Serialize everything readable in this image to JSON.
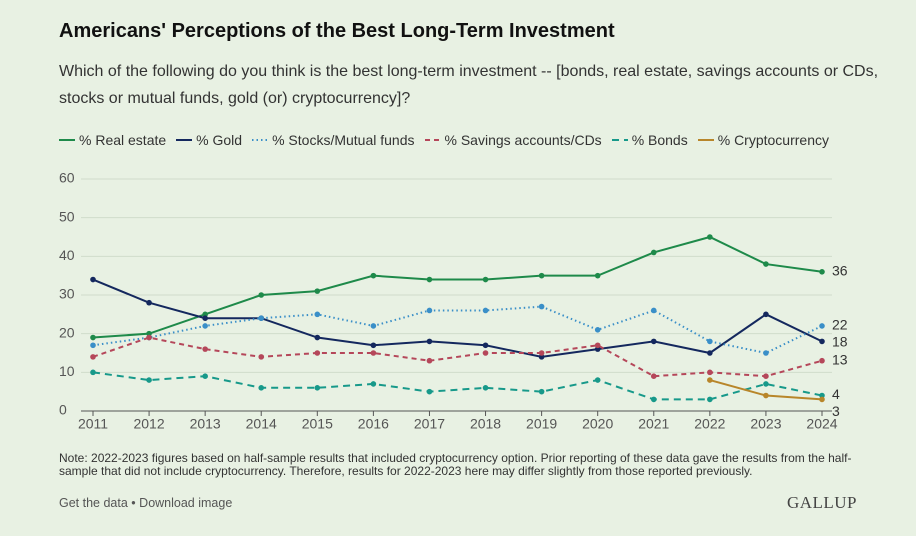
{
  "chart_data": {
    "type": "line",
    "title": "Americans' Perceptions of the Best Long-Term Investment",
    "subtitle": "Which of the following do you think is the best long-term investment -- [bonds, real estate, savings accounts or CDs, stocks or mutual funds, gold (or) cryptocurrency]?",
    "x": [
      2011,
      2012,
      2013,
      2014,
      2015,
      2016,
      2017,
      2018,
      2019,
      2020,
      2021,
      2022,
      2023,
      2024
    ],
    "xlim": [
      2011,
      2024
    ],
    "xticks": [
      2011,
      2012,
      2013,
      2014,
      2015,
      2016,
      2017,
      2018,
      2019,
      2020,
      2021,
      2022,
      2023,
      2024
    ],
    "ylim": [
      0,
      60
    ],
    "yticks": [
      0,
      10,
      20,
      30,
      40,
      50,
      60
    ],
    "grid": true,
    "legend": "top",
    "series": [
      {
        "name": "% Real estate",
        "color": "#1e8a4a",
        "dash": "solid",
        "values": [
          19,
          20,
          25,
          30,
          31,
          35,
          34,
          34,
          35,
          35,
          41,
          45,
          38,
          36
        ]
      },
      {
        "name": "% Gold",
        "color": "#14285e",
        "dash": "solid",
        "values": [
          34,
          28,
          24,
          24,
          19,
          17,
          18,
          17,
          14,
          16,
          18,
          15,
          25,
          18
        ]
      },
      {
        "name": "% Stocks/Mutual funds",
        "color": "#3a8fc8",
        "dash": "dotted",
        "values": [
          17,
          19,
          22,
          24,
          25,
          22,
          26,
          26,
          27,
          21,
          26,
          18,
          15,
          22
        ]
      },
      {
        "name": "% Savings accounts/CDs",
        "color": "#b5475a",
        "dash": "dashed",
        "values": [
          14,
          19,
          16,
          14,
          15,
          15,
          13,
          15,
          15,
          17,
          9,
          10,
          9,
          13
        ]
      },
      {
        "name": "% Bonds",
        "color": "#17998a",
        "dash": "longdash",
        "values": [
          10,
          8,
          9,
          6,
          6,
          7,
          5,
          6,
          5,
          8,
          3,
          3,
          7,
          4
        ]
      },
      {
        "name": "% Cryptocurrency",
        "color": "#b8862a",
        "dash": "solid",
        "values": [
          null,
          null,
          null,
          null,
          null,
          null,
          null,
          null,
          null,
          null,
          null,
          8,
          4,
          3
        ]
      }
    ],
    "note": "Note: 2022-2023 figures based on half-sample results that included cryptocurrency option. Prior reporting of these data gave the results from the half-sample that did not include cryptocurrency. Therefore, results for 2022-2023 here may differ slightly from those reported previously."
  },
  "footer": {
    "links": [
      "Get the data",
      "Download image"
    ],
    "separator": "•",
    "brand": "GALLUP"
  }
}
